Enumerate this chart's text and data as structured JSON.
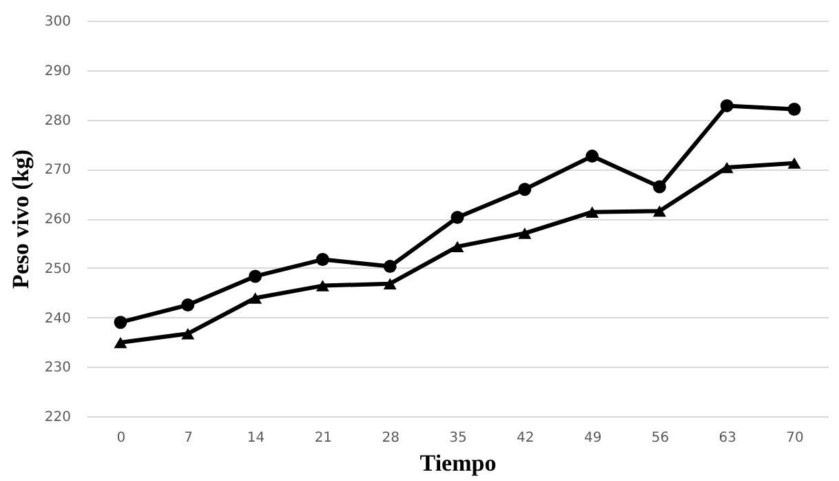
{
  "chart_data": {
    "type": "line",
    "xlabel": "Tiempo",
    "ylabel": "Peso vivo (kg)",
    "categories": [
      "0",
      "7",
      "14",
      "21",
      "28",
      "35",
      "42",
      "49",
      "56",
      "63",
      "70"
    ],
    "series": [
      {
        "color": "#000000",
        "marker": "circle",
        "values": [
          239,
          242.5,
          248.3,
          251.7,
          250.3,
          260.2,
          265.9,
          272.6,
          266.4,
          282.8,
          282.1
        ]
      },
      {
        "color": "#000000",
        "marker": "triangle",
        "values": [
          234.9,
          236.7,
          243.9,
          246.4,
          246.8,
          254.3,
          257,
          261.3,
          261.5,
          270.3,
          271.2
        ]
      }
    ],
    "ylim": [
      220,
      300
    ],
    "yticks": [
      220,
      230,
      240,
      250,
      260,
      270,
      280,
      290,
      300
    ],
    "grid": "y",
    "line_style": "solid"
  }
}
